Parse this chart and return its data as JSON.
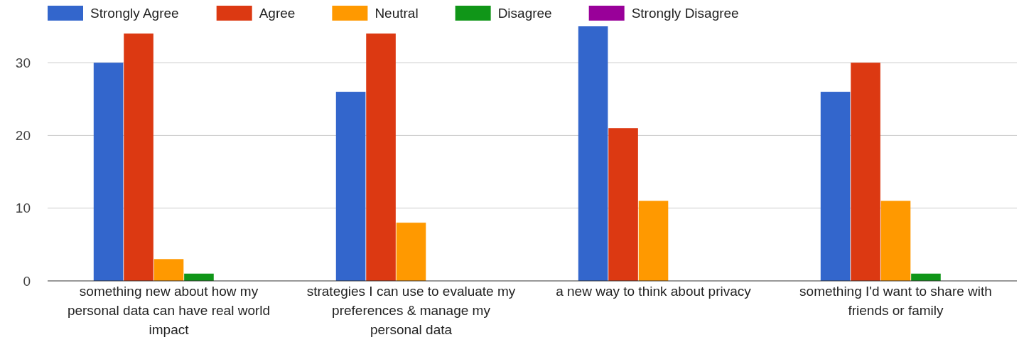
{
  "chart_data": {
    "type": "bar",
    "categories": [
      "something new about how my personal data can have real world impact",
      "strategies I can use to evaluate my preferences & manage my personal data",
      "a new way to think about privacy",
      "something I'd want to share with friends or family"
    ],
    "series": [
      {
        "name": "Strongly Agree",
        "color": "#3366cc",
        "values": [
          30,
          26,
          35,
          26
        ]
      },
      {
        "name": "Agree",
        "color": "#dc3912",
        "values": [
          34,
          34,
          21,
          30
        ]
      },
      {
        "name": "Neutral",
        "color": "#ff9900",
        "values": [
          3,
          8,
          11,
          11
        ]
      },
      {
        "name": "Disagree",
        "color": "#109618",
        "values": [
          1,
          0,
          0,
          1
        ]
      },
      {
        "name": "Strongly Disagree",
        "color": "#990099",
        "values": [
          0,
          0,
          0,
          0
        ]
      }
    ],
    "ylim": [
      0,
      35
    ],
    "yticks": [
      0,
      10,
      20,
      30
    ],
    "grid": "y",
    "legend": "top"
  }
}
